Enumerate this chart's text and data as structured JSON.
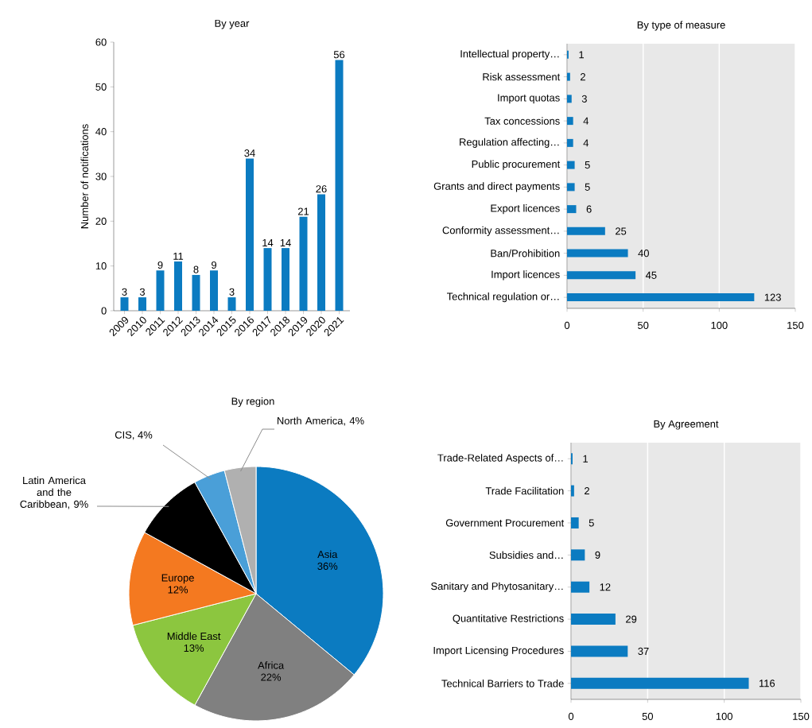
{
  "chart_data": [
    {
      "type": "bar",
      "title": "By year",
      "ylabel": "Number of notifications",
      "categories": [
        "2009",
        "2010",
        "2011",
        "2012",
        "2013",
        "2014",
        "2015",
        "2016",
        "2017",
        "2018",
        "2019",
        "2020",
        "2021"
      ],
      "values": [
        3,
        3,
        9,
        11,
        8,
        9,
        3,
        34,
        14,
        14,
        21,
        26,
        56
      ],
      "color": "#0b7bc1",
      "ylim": [
        0,
        60
      ],
      "yticks": [
        0,
        10,
        20,
        30,
        40,
        50,
        60
      ],
      "data_labels": true
    },
    {
      "type": "bar",
      "orientation": "horizontal",
      "title": "By type of measure",
      "categories": [
        "Intellectual property…",
        "Risk assessment",
        "Import quotas",
        "Tax concessions",
        "Regulation affecting…",
        "Public procurement",
        "Grants and direct payments",
        "Export licences",
        "Conformity assessment…",
        "Ban/Prohibition",
        "Import licences",
        "Technical regulation or…"
      ],
      "values": [
        1,
        2,
        3,
        4,
        4,
        5,
        5,
        6,
        25,
        40,
        45,
        123
      ],
      "color": "#0b7bc1",
      "xlim": [
        0,
        150
      ],
      "xticks": [
        0,
        50,
        100,
        150
      ],
      "grid": "x",
      "data_labels": true
    },
    {
      "type": "pie",
      "title": "By region",
      "categories": [
        "Asia",
        "Africa",
        "Middle East",
        "Europe",
        "Latin America and the Caribbean",
        "CIS",
        "North America"
      ],
      "values": [
        36,
        22,
        13,
        12,
        9,
        4,
        4
      ],
      "colors": [
        "#0b7bc1",
        "#808080",
        "#8cc63f",
        "#f47920",
        "#000000",
        "#4a9fd8",
        "#b0b0b0"
      ],
      "value_labels": [
        "36%",
        "22%",
        "13%",
        "12%",
        ", 9%",
        ", 4%",
        ", 4%"
      ]
    },
    {
      "type": "bar",
      "orientation": "horizontal",
      "title": "By Agreement",
      "categories": [
        "Trade-Related Aspects of…",
        "Trade Facilitation",
        "Government Procurement",
        "Subsidies and…",
        "Sanitary and Phytosanitary…",
        "Quantitative Restrictions",
        "Import Licensing Procedures",
        "Technical Barriers to Trade"
      ],
      "values": [
        1,
        2,
        5,
        9,
        12,
        29,
        37,
        116
      ],
      "color": "#0b7bc1",
      "xlim": [
        0,
        150
      ],
      "xticks": [
        0,
        50,
        100,
        150
      ],
      "grid": "x",
      "data_labels": true
    }
  ]
}
